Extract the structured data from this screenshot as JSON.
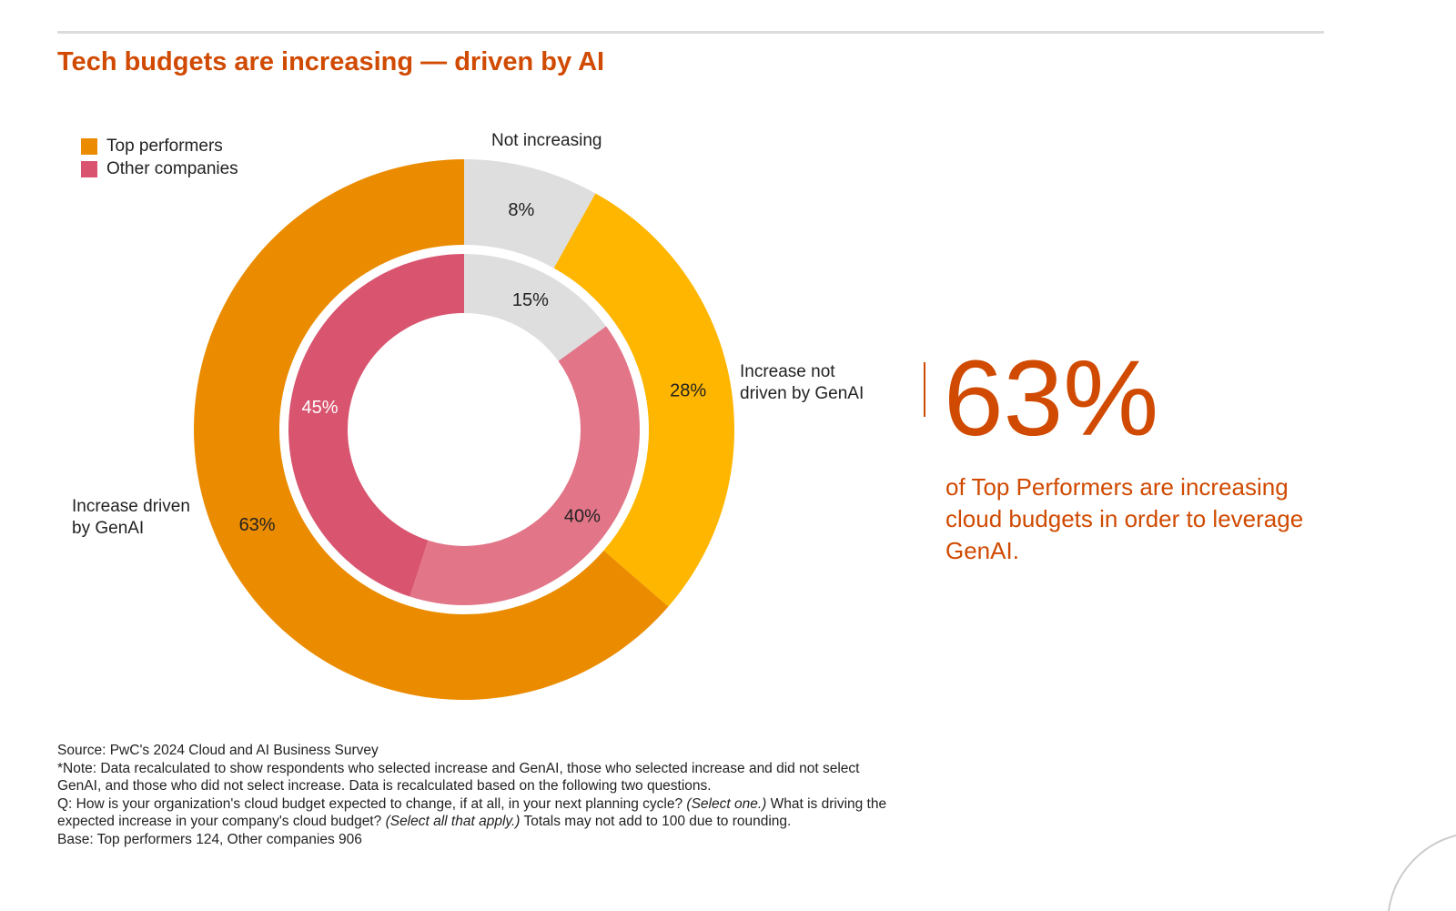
{
  "title": "Tech budgets are increasing — driven by AI",
  "chart_data": {
    "type": "pie",
    "subtype": "nested-donut",
    "title": "Tech budgets are increasing — driven by AI",
    "legend": {
      "position": "top-left",
      "entries": [
        "Top performers",
        "Other companies"
      ]
    },
    "categories": [
      "Not increasing",
      "Increase not driven by GenAI",
      "Increase driven by GenAI"
    ],
    "series": [
      {
        "name": "Top performers",
        "ring": "outer",
        "values": [
          8,
          28,
          63
        ],
        "labels": [
          "8%",
          "28%",
          "63%"
        ],
        "colors": [
          "#dedede",
          "#ffb600",
          "#eb8c00"
        ]
      },
      {
        "name": "Other companies",
        "ring": "inner",
        "values": [
          15,
          40,
          45
        ],
        "labels": [
          "15%",
          "40%",
          "45%"
        ],
        "colors": [
          "#dedede",
          "#e27588",
          "#d9546e"
        ]
      }
    ],
    "legend_colors": [
      "#eb8c00",
      "#d9546e"
    ]
  },
  "callout": {
    "value": "63%",
    "text": "of Top Performers are increasing cloud budgets in order to leverage GenAI."
  },
  "footnote": {
    "source": "Source: PwC's 2024 Cloud and AI Business Survey",
    "note": "*Note: Data recalculated to show respondents who selected increase and GenAI, those who selected increase and did not select GenAI, and those who did not select increase. Data is recalculated based on the following two questions.",
    "q1": "Q: How is your organization's cloud budget expected to change, if at all, in your next planning cycle?",
    "q1_hint": "(Select one.)",
    "q2": "What is driving the expected increase in your company's cloud budget?",
    "q2_hint": "(Select all that apply.)",
    "totals": "Totals may not add to 100 due to rounding.",
    "base": "Base: Top performers 124, Other companies 906"
  },
  "accent_color": "#d04a02"
}
